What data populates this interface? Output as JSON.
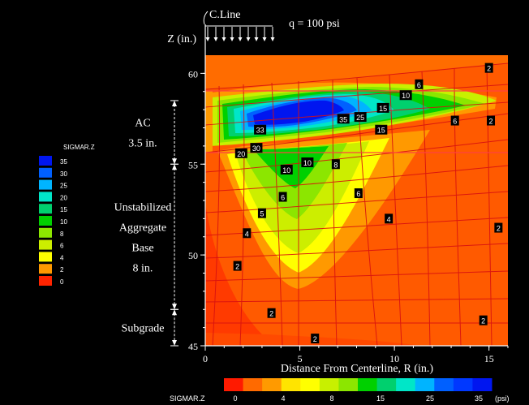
{
  "chart_data": {
    "type": "heatmap",
    "title": "",
    "xlabel": "Distance From Centerline, R (in.)",
    "ylabel": "Z (in.)",
    "xlim": [
      0,
      16
    ],
    "ylim": [
      45,
      61
    ],
    "x_ticks": [
      "0",
      "5",
      "10",
      "15"
    ],
    "y_ticks": [
      "45",
      "50",
      "55",
      "60"
    ],
    "load_label": "q = 100 psi",
    "centerline_label": "C.Line",
    "layers": [
      {
        "name_lines": [
          "AC",
          "3.5 in."
        ],
        "z_top": 58.5,
        "z_bottom": 55
      },
      {
        "name_lines": [
          "Unstabilized",
          "Aggregate",
          "Base",
          "8 in."
        ],
        "z_top": 55,
        "z_bottom": 47
      },
      {
        "name_lines": [
          "Subgrade"
        ],
        "z_top": 47,
        "z_bottom": 45
      }
    ],
    "legend": {
      "title": "SIGMAR.Z",
      "levels": [
        "35",
        "30",
        "25",
        "20",
        "15",
        "10",
        "8",
        "6",
        "4",
        "2",
        "0"
      ],
      "colors": [
        "#0016f0",
        "#0060ff",
        "#00b4ff",
        "#00e6c8",
        "#00d06e",
        "#00d000",
        "#8ce600",
        "#ccee00",
        "#ffff00",
        "#ff9900",
        "#ff2400"
      ]
    },
    "colorbar": {
      "title": "SIGMAR.Z",
      "unit": "(psi)",
      "tick_labels": [
        "0",
        "4",
        "8",
        "15",
        "25",
        "35"
      ],
      "colors": [
        "#ff1a00",
        "#ff6a00",
        "#ff9a00",
        "#ffe400",
        "#ffff00",
        "#c8f000",
        "#8ce600",
        "#00d000",
        "#00d06e",
        "#00e6c8",
        "#00b4ff",
        "#0060ff",
        "#0038ff",
        "#0016f0"
      ]
    },
    "contour_labels": [
      {
        "text": "2",
        "r": 15,
        "z": 60.3
      },
      {
        "text": "6",
        "r": 11.3,
        "z": 59.4
      },
      {
        "text": "10",
        "r": 10.6,
        "z": 58.8
      },
      {
        "text": "15",
        "r": 9.4,
        "z": 58.1
      },
      {
        "text": "25",
        "r": 8.2,
        "z": 57.6
      },
      {
        "text": "35",
        "r": 7.3,
        "z": 57.5
      },
      {
        "text": "33",
        "r": 2.9,
        "z": 56.9
      },
      {
        "text": "15",
        "r": 9.3,
        "z": 56.9
      },
      {
        "text": "6",
        "r": 13.2,
        "z": 57.4
      },
      {
        "text": "2",
        "r": 15.1,
        "z": 57.4
      },
      {
        "text": "30",
        "r": 2.7,
        "z": 55.9
      },
      {
        "text": "20",
        "r": 1.9,
        "z": 55.6
      },
      {
        "text": "10",
        "r": 4.3,
        "z": 54.7
      },
      {
        "text": "10",
        "r": 5.4,
        "z": 55.1
      },
      {
        "text": "8",
        "r": 6.9,
        "z": 55.0
      },
      {
        "text": "6",
        "r": 4.1,
        "z": 53.2
      },
      {
        "text": "6",
        "r": 8.1,
        "z": 53.4
      },
      {
        "text": "5",
        "r": 3.0,
        "z": 52.3
      },
      {
        "text": "4",
        "r": 9.7,
        "z": 52.0
      },
      {
        "text": "4",
        "r": 2.2,
        "z": 51.2
      },
      {
        "text": "2",
        "r": 15.5,
        "z": 51.5
      },
      {
        "text": "2",
        "r": 1.7,
        "z": 49.4
      },
      {
        "text": "2",
        "r": 3.5,
        "z": 46.8
      },
      {
        "text": "2",
        "r": 14.7,
        "z": 46.4
      },
      {
        "text": "2",
        "r": 5.8,
        "z": 45.4
      }
    ]
  }
}
